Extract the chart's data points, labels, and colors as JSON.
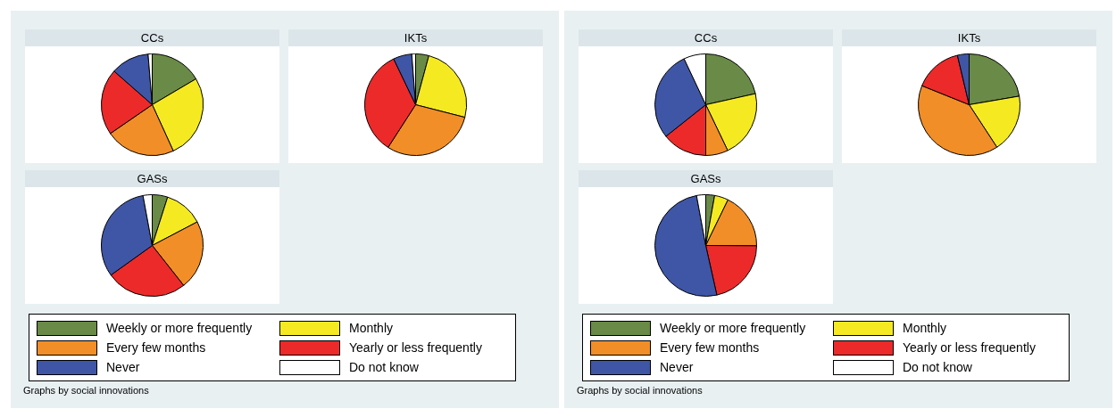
{
  "chart_data": [
    {
      "type": "pie",
      "categories": [
        "Weekly or more frequently",
        "Monthly",
        "Every few months",
        "Yearly or less frequently",
        "Never",
        "Do not know"
      ],
      "colors": [
        "#6a8a47",
        "#f5ea22",
        "#f28e27",
        "#ec2a2a",
        "#3f56a6",
        "#ffffff"
      ],
      "legend": "bottom",
      "annotations": [
        "Graphs by social innovations"
      ],
      "series": [
        {
          "name": "CCs",
          "values": [
            16.5,
            26.7,
            22.2,
            21.1,
            12.2,
            1.3
          ]
        },
        {
          "name": "IKTs",
          "values": [
            4.2,
            24.8,
            30.1,
            33.8,
            5.9,
            1.2
          ]
        },
        {
          "name": "GASs",
          "values": [
            4.9,
            12.4,
            22.1,
            25.7,
            32.0,
            2.9
          ]
        }
      ]
    },
    {
      "type": "pie",
      "categories": [
        "Weekly or more frequently",
        "Monthly",
        "Every few months",
        "Yearly or less frequently",
        "Never",
        "Do not know"
      ],
      "colors": [
        "#6a8a47",
        "#f5ea22",
        "#f28e27",
        "#ec2a2a",
        "#3f56a6",
        "#ffffff"
      ],
      "legend": "bottom",
      "annotations": [
        "Graphs by social innovations"
      ],
      "series": [
        {
          "name": "CCs",
          "values": [
            21.5,
            21.4,
            7.1,
            14.3,
            28.7,
            7.0
          ]
        },
        {
          "name": "IKTs",
          "values": [
            22.3,
            18.5,
            40.3,
            15.2,
            3.7,
            0
          ]
        },
        {
          "name": "GASs",
          "values": [
            2.8,
            4.4,
            17.9,
            21.4,
            50.6,
            2.9
          ]
        }
      ]
    }
  ]
}
